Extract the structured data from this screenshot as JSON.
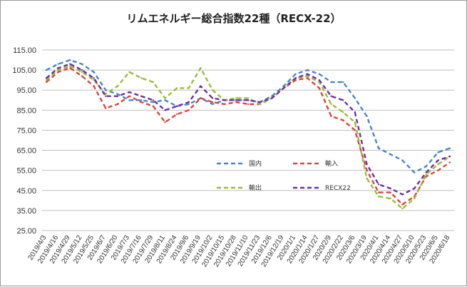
{
  "chart_data": {
    "type": "line",
    "title": "リムエネルギー総合指数22種（RECX-22）",
    "xlabel": "",
    "ylabel": "",
    "ylim": [
      25,
      115
    ],
    "yticks": [
      "115.00",
      "105.00",
      "95.00",
      "85.00",
      "75.00",
      "65.00",
      "55.00",
      "45.00",
      "35.00",
      "25.00"
    ],
    "grid": "horizontal",
    "legend_placement": "center-right",
    "categories": [
      "2019/4/3",
      "2019/4/16",
      "2019/4/29",
      "2019/5/12",
      "2019/5/25",
      "2019/6/7",
      "2019/6/20",
      "2019/7/3",
      "2019/7/16",
      "2019/7/29",
      "2019/8/11",
      "2019/8/24",
      "2019/9/6",
      "2019/9/19",
      "2019/10/2",
      "2019/10/15",
      "2019/10/28",
      "2019/11/10",
      "2019/11/23",
      "2019/12/6",
      "2019/12/19",
      "2020/1/1",
      "2020/1/14",
      "2020/1/27",
      "2020/2/9",
      "2020/2/22",
      "2020/3/6",
      "2020/3/19",
      "2020/4/1",
      "2020/4/14",
      "2020/4/27",
      "2020/5/10",
      "2020/5/23",
      "2020/6/5",
      "2020/6/18"
    ],
    "series": [
      {
        "name": "国内",
        "color": "#4a86c8",
        "values": [
          105,
          108,
          110,
          108,
          104,
          95,
          93,
          90,
          90,
          89,
          90,
          87,
          88,
          91,
          88,
          90,
          90,
          90,
          89,
          92,
          97,
          103,
          105,
          103,
          99,
          99,
          91,
          82,
          66,
          63,
          60,
          54,
          57,
          64,
          66
        ]
      },
      {
        "name": "輸入",
        "color": "#d9463d",
        "values": [
          99,
          104,
          106,
          102,
          97,
          86,
          88,
          92,
          89,
          87,
          79,
          83,
          85,
          91,
          89,
          88,
          89,
          88,
          88,
          91,
          96,
          100,
          101,
          96,
          82,
          80,
          75,
          55,
          44,
          44,
          38,
          42,
          52,
          55,
          59
        ]
      },
      {
        "name": "輸出",
        "color": "#9bbb3a",
        "values": [
          100,
          105,
          107,
          104,
          100,
          93,
          97,
          104,
          101,
          99,
          91,
          96,
          96,
          106,
          95,
          90,
          91,
          91,
          88,
          91,
          96,
          101,
          102,
          99,
          88,
          84,
          79,
          51,
          42,
          41,
          36,
          41,
          53,
          58,
          62
        ]
      },
      {
        "name": "RECX22",
        "color": "#7030a0",
        "values": [
          101,
          106,
          108,
          105,
          101,
          92,
          92,
          94,
          92,
          90,
          85,
          87,
          89,
          97,
          91,
          90,
          90,
          90,
          89,
          91,
          96,
          101,
          103,
          100,
          92,
          90,
          84,
          58,
          48,
          46,
          43,
          46,
          54,
          60,
          62
        ]
      }
    ]
  }
}
